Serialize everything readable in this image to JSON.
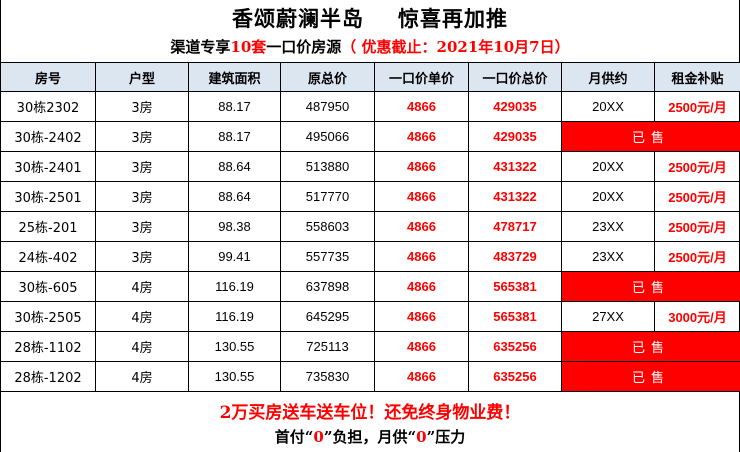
{
  "header": {
    "title_left": "香颂蔚澜半岛",
    "title_right": "惊喜再加推",
    "sub_prefix": "渠道专享",
    "sub_count": "10套",
    "sub_middle": "一口价房源",
    "sub_deadline": "（ 优惠截止：2021年10月7日）"
  },
  "table": {
    "columns": [
      "房号",
      "户型",
      "建筑面积",
      "原总价",
      "一口价单价",
      "一口价总价",
      "月供约",
      "租金补贴"
    ],
    "sold_label": "已售",
    "rows": [
      {
        "room": "30栋2302",
        "type": "3房",
        "area": "88.17",
        "orig": "487950",
        "unit": "4866",
        "total": "429035",
        "monthly": "20XX",
        "subsidy": "2500元/月",
        "sold": false
      },
      {
        "room": "30栋-2402",
        "type": "3房",
        "area": "88.17",
        "orig": "495066",
        "unit": "4866",
        "total": "429035",
        "monthly": "",
        "subsidy": "",
        "sold": true
      },
      {
        "room": "30栋-2401",
        "type": "3房",
        "area": "88.64",
        "orig": "513880",
        "unit": "4866",
        "total": "431322",
        "monthly": "20XX",
        "subsidy": "2500元/月",
        "sold": false
      },
      {
        "room": "30栋-2501",
        "type": "3房",
        "area": "88.64",
        "orig": "517770",
        "unit": "4866",
        "total": "431322",
        "monthly": "20XX",
        "subsidy": "2500元/月",
        "sold": false
      },
      {
        "room": "25栋-201",
        "type": "3房",
        "area": "98.38",
        "orig": "558603",
        "unit": "4866",
        "total": "478717",
        "monthly": "23XX",
        "subsidy": "2500元/月",
        "sold": false
      },
      {
        "room": "24栋-402",
        "type": "3房",
        "area": "99.41",
        "orig": "557735",
        "unit": "4866",
        "total": "483729",
        "monthly": "23XX",
        "subsidy": "2500元/月",
        "sold": false
      },
      {
        "room": "30栋-605",
        "type": "4房",
        "area": "116.19",
        "orig": "637898",
        "unit": "4866",
        "total": "565381",
        "monthly": "",
        "subsidy": "",
        "sold": true
      },
      {
        "room": "30栋-2505",
        "type": "4房",
        "area": "116.19",
        "orig": "645295",
        "unit": "4866",
        "total": "565381",
        "monthly": "27XX",
        "subsidy": "3000元/月",
        "sold": false
      },
      {
        "room": "28栋-1102",
        "type": "4房",
        "area": "130.55",
        "orig": "725113",
        "unit": "4866",
        "total": "635256",
        "monthly": "",
        "subsidy": "",
        "sold": true
      },
      {
        "room": "28栋-1202",
        "type": "4房",
        "area": "130.55",
        "orig": "735830",
        "unit": "4866",
        "total": "635256",
        "monthly": "",
        "subsidy": "",
        "sold": true
      }
    ]
  },
  "footer": {
    "promo_amount": "2万",
    "promo_text": "买房送车送车位！还免终身物业费！",
    "line2_a": "首付“",
    "line2_zero1": "0",
    "line2_b": "”负担，月供“",
    "line2_zero2": "0",
    "line2_c": "”压力"
  },
  "colors": {
    "accent_red": "#ff0000",
    "header_fill": "#dce6f1",
    "sold_fill": "#ff0000"
  }
}
